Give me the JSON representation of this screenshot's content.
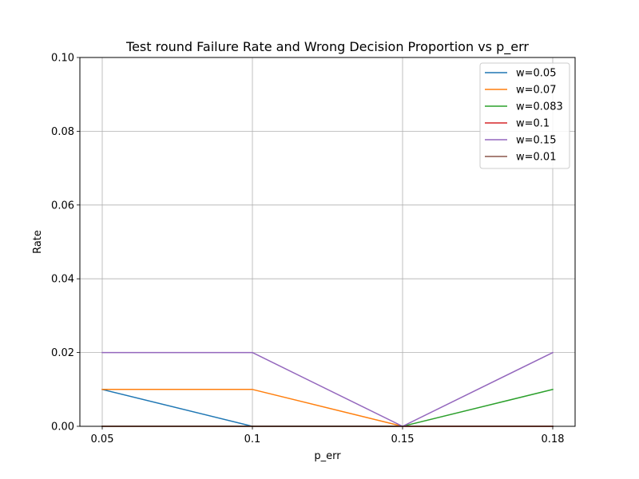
{
  "chart_data": {
    "type": "line",
    "title": "Test round Failure Rate and Wrong Decision Proportion vs p_err",
    "xlabel": "p_err",
    "ylabel": "Rate",
    "x": [
      0.05,
      0.1,
      0.15,
      0.18
    ],
    "x_tick_labels": [
      "0.05",
      "0.1",
      "0.15",
      "0.18"
    ],
    "y_ticks": [
      0.0,
      0.02,
      0.04,
      0.06,
      0.08,
      0.1
    ],
    "y_tick_labels": [
      "0.00",
      "0.02",
      "0.04",
      "0.06",
      "0.08",
      "0.10"
    ],
    "ylim": [
      0,
      0.1
    ],
    "grid": true,
    "legend_position": "top-right",
    "series": [
      {
        "name": "w=0.05",
        "color": "#1f77b4",
        "values": [
          0.01,
          0.0,
          0.0,
          0.0
        ]
      },
      {
        "name": "w=0.07",
        "color": "#ff7f0e",
        "values": [
          0.01,
          0.01,
          0.0,
          0.0
        ]
      },
      {
        "name": "w=0.083",
        "color": "#2ca02c",
        "values": [
          0.0,
          0.0,
          0.0,
          0.01
        ]
      },
      {
        "name": "w=0.1",
        "color": "#d62728",
        "values": [
          0.0,
          0.0,
          0.0,
          0.0
        ]
      },
      {
        "name": "w=0.15",
        "color": "#9467bd",
        "values": [
          0.02,
          0.02,
          0.0,
          0.02
        ]
      },
      {
        "name": "w=0.01",
        "color": "#8c564b",
        "values": [
          0.0,
          0.0,
          0.0,
          0.0
        ]
      }
    ]
  }
}
